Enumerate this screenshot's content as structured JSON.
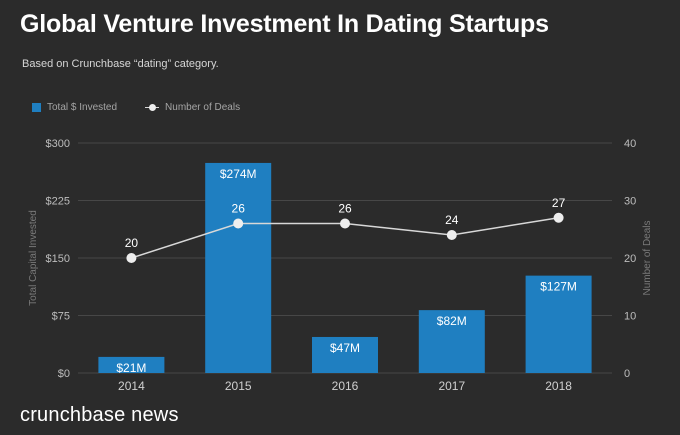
{
  "header": {
    "title": "Global Venture Investment In Dating Startups",
    "subtitle": "Based on Crunchbase “dating” category."
  },
  "legend": {
    "bars_label": "Total $ Invested",
    "line_label": "Number of Deals"
  },
  "footer": {
    "brand": "crunchbase news"
  },
  "colors": {
    "background": "#2b2b2b",
    "bar": "#1f7fc1",
    "line": "#d8d8d8",
    "point": "#eeeeee"
  },
  "chart_data": {
    "type": "bar",
    "categories": [
      "2014",
      "2015",
      "2016",
      "2017",
      "2018"
    ],
    "series": [
      {
        "name": "Total $ Invested",
        "type": "bar",
        "axis": "left",
        "values": [
          21,
          274,
          47,
          82,
          127
        ],
        "data_labels": [
          "$21M",
          "$274M",
          "$47M",
          "$82M",
          "$127M"
        ]
      },
      {
        "name": "Number of Deals",
        "type": "line",
        "axis": "right",
        "values": [
          20,
          26,
          26,
          24,
          27
        ],
        "data_labels": [
          "20",
          "26",
          "26",
          "24",
          "27"
        ]
      }
    ],
    "ylabel": "Total Capital Invested",
    "ylim": [
      0,
      300
    ],
    "yticks": [
      "$0",
      "$75",
      "$150",
      "$225",
      "$300"
    ],
    "y2label": "Number of Deals",
    "y2lim": [
      0,
      40
    ],
    "y2ticks": [
      "0",
      "10",
      "20",
      "30",
      "40"
    ],
    "grid": true,
    "legend_position": "top-left"
  }
}
